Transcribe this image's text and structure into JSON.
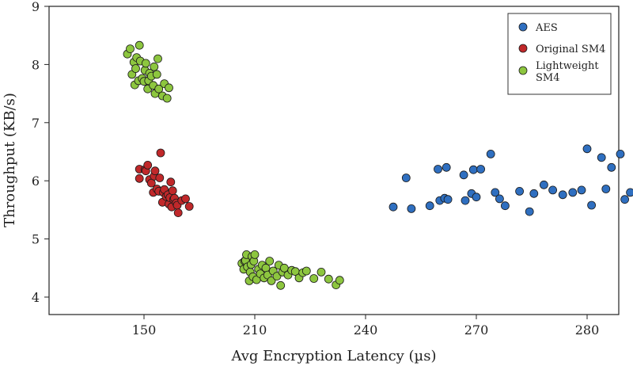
{
  "chart_data": {
    "type": "scatter",
    "title": "",
    "xlabel": "Avg Encryption Latency (µs)",
    "ylabel": "Throughput (KB/s)",
    "x_ticks": [
      "150",
      "210",
      "240",
      "270",
      "280"
    ],
    "y_ticks": [
      "4",
      "5",
      "6",
      "7",
      "8",
      "9"
    ],
    "ylim": [
      3.7,
      9
    ],
    "grid": false,
    "legend_position": "top-right",
    "series": [
      {
        "name": "AES",
        "color": "#2f6fc0",
        "points": [
          [
            247.5,
            5.55
          ],
          [
            251,
            6.05
          ],
          [
            252.4,
            5.52
          ],
          [
            257.4,
            5.57
          ],
          [
            259.6,
            6.2
          ],
          [
            260.1,
            5.66
          ],
          [
            261.4,
            5.7
          ],
          [
            261.9,
            6.23
          ],
          [
            262.3,
            5.68
          ],
          [
            266.6,
            6.1
          ],
          [
            267,
            5.66
          ],
          [
            268.7,
            5.78
          ],
          [
            269.2,
            6.19
          ],
          [
            270,
            5.72
          ],
          [
            270.4,
            6.2
          ],
          [
            271.3,
            6.46
          ],
          [
            271.7,
            5.8
          ],
          [
            272.1,
            5.69
          ],
          [
            272.6,
            5.57
          ],
          [
            273.9,
            5.82
          ],
          [
            274.8,
            5.47
          ],
          [
            275.2,
            5.78
          ],
          [
            276.1,
            5.93
          ],
          [
            276.9,
            5.84
          ],
          [
            277.8,
            5.76
          ],
          [
            278.7,
            5.8
          ],
          [
            279.5,
            5.84
          ],
          [
            280,
            6.55
          ],
          [
            280.4,
            5.58
          ],
          [
            281.3,
            6.4
          ],
          [
            281.7,
            5.86
          ],
          [
            282.2,
            6.23
          ],
          [
            283,
            6.46
          ],
          [
            283.4,
            5.68
          ],
          [
            283.9,
            5.8
          ],
          [
            285.2,
            6.08
          ],
          [
            286.5,
            5.82
          ],
          [
            286.9,
            6.04
          ],
          [
            288.2,
            5.97
          ],
          [
            288.2,
            6.27
          ]
        ]
      },
      {
        "name": "Original SM4",
        "color": "#c0282a",
        "points": [
          [
            147.5,
            6.2
          ],
          [
            147.5,
            6.04
          ],
          [
            150.5,
            6.19
          ],
          [
            151,
            6.17
          ],
          [
            152,
            6.27
          ],
          [
            153,
            6.02
          ],
          [
            154,
            5.96
          ],
          [
            155,
            5.8
          ],
          [
            155.5,
            6.08
          ],
          [
            156,
            6.17
          ],
          [
            157,
            5.86
          ],
          [
            158,
            5.82
          ],
          [
            158.5,
            6.05
          ],
          [
            159,
            6.48
          ],
          [
            160,
            5.63
          ],
          [
            160.5,
            5.8
          ],
          [
            161,
            5.85
          ],
          [
            162,
            5.73
          ],
          [
            163,
            5.76
          ],
          [
            163.5,
            5.6
          ],
          [
            164,
            5.71
          ],
          [
            164.5,
            5.98
          ],
          [
            165,
            5.55
          ],
          [
            165.5,
            5.83
          ],
          [
            166,
            5.68
          ],
          [
            166.5,
            5.7
          ],
          [
            167.5,
            5.62
          ],
          [
            168,
            5.58
          ],
          [
            168.5,
            5.45
          ],
          [
            170.5,
            5.66
          ],
          [
            172.5,
            5.69
          ],
          [
            174.5,
            5.56
          ]
        ]
      },
      {
        "name": "Lightweight SM4",
        "color": "#8dc63f",
        "points": [
          [
            141,
            8.18
          ],
          [
            142.5,
            8.27
          ],
          [
            143.5,
            7.83
          ],
          [
            144.5,
            8.04
          ],
          [
            145,
            7.65
          ],
          [
            145.5,
            7.93
          ],
          [
            146,
            8.12
          ],
          [
            147,
            7.72
          ],
          [
            147.5,
            8.33
          ],
          [
            148,
            8.06
          ],
          [
            149,
            7.76
          ],
          [
            150,
            7.71
          ],
          [
            150.5,
            7.9
          ],
          [
            151,
            8.02
          ],
          [
            152,
            7.58
          ],
          [
            152.5,
            7.72
          ],
          [
            153,
            7.85
          ],
          [
            154,
            7.8
          ],
          [
            155,
            7.64
          ],
          [
            155.5,
            7.96
          ],
          [
            156,
            7.5
          ],
          [
            157,
            7.83
          ],
          [
            157.5,
            8.1
          ],
          [
            158,
            7.58
          ],
          [
            160,
            7.46
          ],
          [
            161,
            7.67
          ],
          [
            162.5,
            7.42
          ],
          [
            163.5,
            7.6
          ],
          [
            203,
            4.58
          ],
          [
            204,
            4.48
          ],
          [
            204.5,
            4.62
          ],
          [
            205,
            4.63
          ],
          [
            205.5,
            4.73
          ],
          [
            206,
            4.52
          ],
          [
            207,
            4.28
          ],
          [
            207.5,
            4.43
          ],
          [
            208,
            4.56
          ],
          [
            208.5,
            4.7
          ],
          [
            209,
            4.35
          ],
          [
            209.5,
            4.62
          ],
          [
            210,
            4.73
          ],
          [
            210.5,
            4.3
          ],
          [
            211,
            4.48
          ],
          [
            211.5,
            4.4
          ],
          [
            212,
            4.55
          ],
          [
            212.5,
            4.33
          ],
          [
            213,
            4.5
          ],
          [
            213.5,
            4.38
          ],
          [
            214,
            4.62
          ],
          [
            214.5,
            4.28
          ],
          [
            215,
            4.45
          ],
          [
            216,
            4.36
          ],
          [
            216.5,
            4.55
          ],
          [
            217,
            4.2
          ],
          [
            217.5,
            4.43
          ],
          [
            218,
            4.5
          ],
          [
            219,
            4.38
          ],
          [
            220,
            4.46
          ],
          [
            221,
            4.44
          ],
          [
            222,
            4.33
          ],
          [
            223,
            4.42
          ],
          [
            224,
            4.45
          ],
          [
            226,
            4.32
          ],
          [
            228,
            4.43
          ],
          [
            230,
            4.31
          ],
          [
            232,
            4.21
          ],
          [
            233,
            4.29
          ]
        ]
      }
    ]
  }
}
